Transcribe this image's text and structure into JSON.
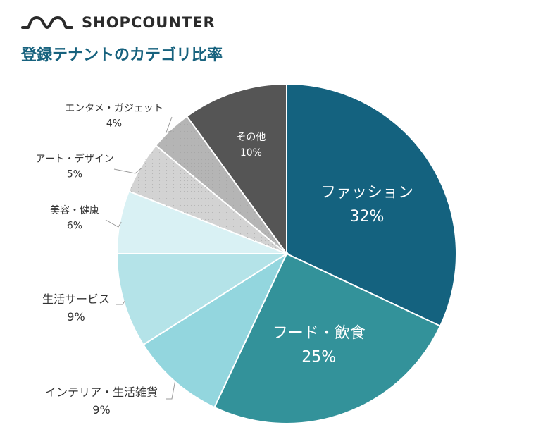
{
  "brand": {
    "name": "SHOPCOUNTER",
    "logo_icon": "wave-logo-icon",
    "color": "#2b2b2b"
  },
  "chart_data": {
    "type": "pie",
    "title": "登録テナントのカテゴリ比率",
    "start_angle_deg": 0,
    "direction": "clockwise",
    "slices": [
      {
        "label": "ファッション",
        "value": 32,
        "display": "32%",
        "color": "#14627f",
        "label_position": "inside",
        "label_color": "#ffffff"
      },
      {
        "label": "フード・飲食",
        "value": 25,
        "display": "25%",
        "color": "#33929a",
        "label_position": "inside",
        "label_color": "#ffffff"
      },
      {
        "label": "インテリア・生活雑貨",
        "value": 9,
        "display": "9%",
        "color": "#93d6de",
        "label_position": "outside",
        "label_color": "#333333"
      },
      {
        "label": "生活サービス",
        "value": 9,
        "display": "9%",
        "color": "#b4e3e8",
        "label_position": "outside",
        "label_color": "#333333"
      },
      {
        "label": "美容・健康",
        "value": 6,
        "display": "6%",
        "color": "#d9f1f4",
        "label_position": "outside",
        "label_color": "#333333"
      },
      {
        "label": "アート・デザイン",
        "value": 5,
        "display": "5%",
        "color": "#d3d3d3",
        "label_position": "outside",
        "label_color": "#333333"
      },
      {
        "label": "エンタメ・ガジェット",
        "value": 4,
        "display": "4%",
        "color": "#b5b5b5",
        "label_position": "outside",
        "label_color": "#333333"
      },
      {
        "label": "その他",
        "value": 10,
        "display": "10%",
        "color": "#555555",
        "label_position": "inside",
        "label_color": "#ffffff"
      }
    ]
  }
}
